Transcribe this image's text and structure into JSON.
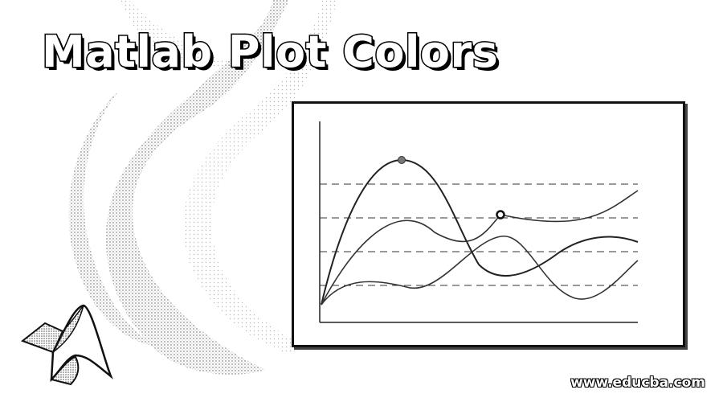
{
  "banner": {
    "title": "Matlab Plot Colors",
    "watermark": "www.educba.com"
  },
  "chart_data": {
    "type": "line",
    "title": "",
    "xlabel": "",
    "ylabel": "",
    "grid": "horizontal-dashed",
    "gridlines": 4,
    "series": [
      {
        "marker": "filled-circle",
        "color": "#222222"
      },
      {
        "marker": "hollow-circle",
        "color": "#222222"
      },
      {
        "marker": "none",
        "color": "#222222"
      }
    ]
  },
  "colors": {
    "ink": "#000000",
    "paper": "#ffffff",
    "stipple": "#c8c8c8"
  },
  "icons": {
    "logo": "matlab-membrane-logo-icon"
  }
}
